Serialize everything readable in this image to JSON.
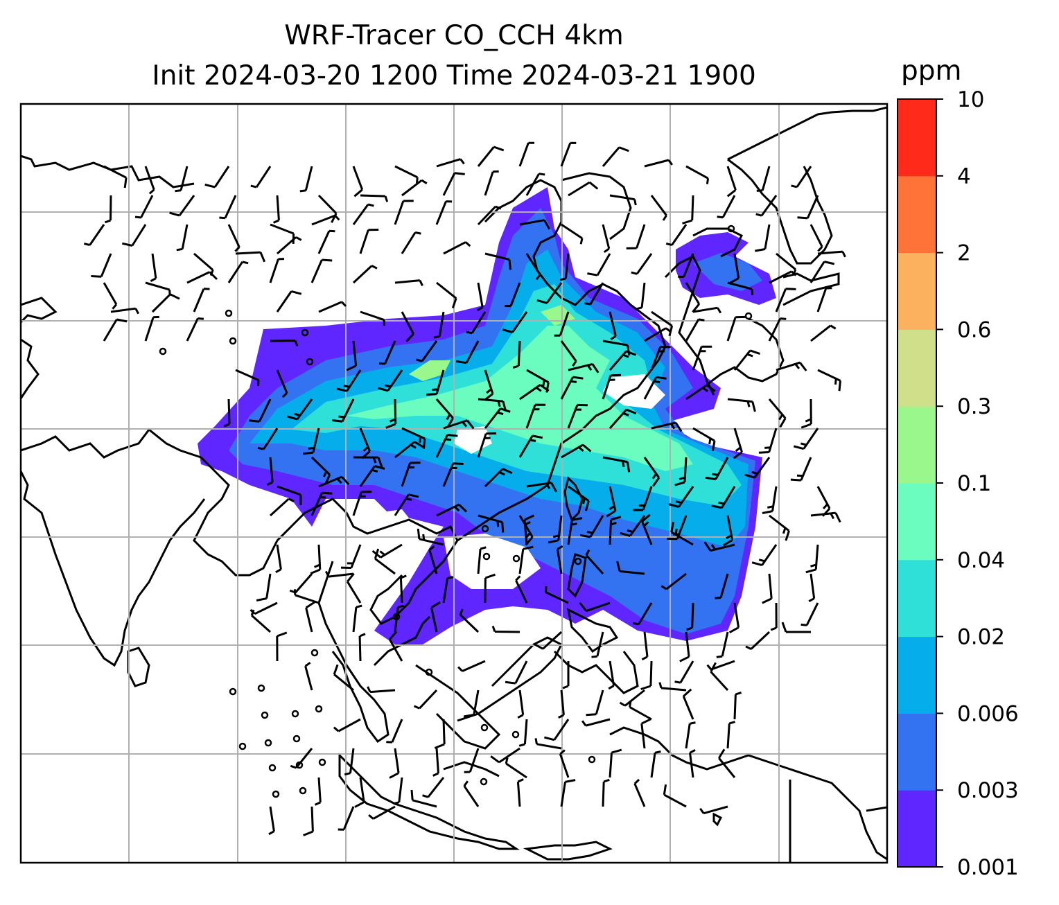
{
  "title_line1": "WRF-Tracer CO_CCH 4km",
  "title_line2": "Init 2024-03-20 1200 Time 2024-03-21 1900",
  "colorbar": {
    "unit": "ppm",
    "levels": [
      "0.001",
      "0.003",
      "0.006",
      "0.02",
      "0.04",
      "0.1",
      "0.3",
      "0.6",
      "2",
      "4",
      "10"
    ],
    "colors": [
      "#6026ff",
      "#3372f0",
      "#05aeeb",
      "#2ee0d8",
      "#6bfcc0",
      "#9af78c",
      "#d0e08a",
      "#fbb15d",
      "#ff7238",
      "#ff2a19"
    ]
  },
  "map": {
    "gridlines": true,
    "field": "CO_CCH tracer concentration",
    "overlay": "wind barbs"
  }
}
